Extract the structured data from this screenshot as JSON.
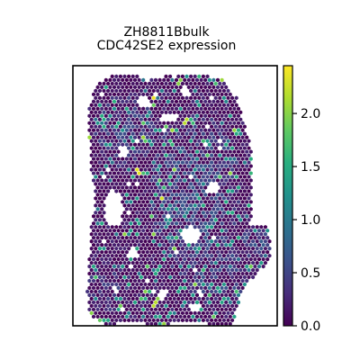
{
  "chart_data": {
    "type": "scatter",
    "title": "ZH8811Bbulk",
    "subtitle": "CDC42SE2 expression",
    "xlabel": "",
    "ylabel": "",
    "grid": false,
    "legend": "none",
    "marker": "hexagon",
    "colormap": "viridis",
    "colorbar": {
      "orientation": "vertical",
      "placement": "right",
      "range": [
        0.0,
        2.45
      ],
      "ticks": [
        0.0,
        0.5,
        1.0,
        1.5,
        2.0
      ],
      "tick_labels": [
        "0.0",
        "0.5",
        "1.0",
        "1.5",
        "2.0"
      ]
    },
    "xlim": [
      0,
      100
    ],
    "ylim": [
      0,
      100
    ],
    "tissue_outline": [
      [
        8,
        15
      ],
      [
        12,
        7
      ],
      [
        18,
        4
      ],
      [
        32,
        4
      ],
      [
        36,
        6
      ],
      [
        45,
        4
      ],
      [
        62,
        3
      ],
      [
        73,
        5
      ],
      [
        80,
        12
      ],
      [
        83,
        20
      ],
      [
        87,
        30
      ],
      [
        88,
        50
      ],
      [
        87,
        62
      ],
      [
        95,
        62
      ],
      [
        97,
        68
      ],
      [
        96,
        75
      ],
      [
        88,
        82
      ],
      [
        83,
        86
      ],
      [
        80,
        95
      ],
      [
        78,
        100
      ],
      [
        70,
        100
      ],
      [
        60,
        98
      ],
      [
        50,
        99
      ],
      [
        40,
        100
      ],
      [
        28,
        98
      ],
      [
        16,
        100
      ],
      [
        8,
        96
      ],
      [
        7,
        88
      ],
      [
        8,
        75
      ],
      [
        9,
        62
      ],
      [
        11,
        50
      ],
      [
        9,
        42
      ],
      [
        8,
        28
      ]
    ],
    "holes": [
      {
        "cx": 20,
        "cy": 55,
        "rx": 4.5,
        "ry": 7
      },
      {
        "cx": 58,
        "cy": 65,
        "rx": 5,
        "ry": 3
      },
      {
        "cx": 68,
        "cy": 47,
        "rx": 3,
        "ry": 2
      },
      {
        "cx": 47,
        "cy": 20,
        "rx": 4,
        "ry": 2
      },
      {
        "cx": 35,
        "cy": 14,
        "rx": 3,
        "ry": 2.5
      },
      {
        "cx": 25,
        "cy": 33,
        "rx": 2.5,
        "ry": 2
      },
      {
        "cx": 55,
        "cy": 10,
        "rx": 2.5,
        "ry": 2
      },
      {
        "cx": 44,
        "cy": 88,
        "rx": 2.5,
        "ry": 2
      },
      {
        "cx": 60,
        "cy": 93,
        "rx": 3,
        "ry": 2
      },
      {
        "cx": 30,
        "cy": 72,
        "rx": 2,
        "ry": 2
      }
    ],
    "regions": [
      {
        "cx": 60,
        "cy": 50,
        "rx": 22,
        "ry": 32,
        "level": 0.55
      },
      {
        "cx": 72,
        "cy": 80,
        "rx": 18,
        "ry": 12,
        "level": 0.5
      },
      {
        "cx": 90,
        "cy": 68,
        "rx": 8,
        "ry": 6,
        "level": 0.6
      },
      {
        "cx": 25,
        "cy": 25,
        "rx": 16,
        "ry": 14,
        "level": 0.45
      },
      {
        "cx": 18,
        "cy": 85,
        "rx": 12,
        "ry": 10,
        "level": 0.35
      }
    ],
    "hotspots": [
      {
        "x": 40,
        "y": 12,
        "value": 2.4
      },
      {
        "x": 55,
        "y": 21,
        "value": 2.2
      },
      {
        "x": 48,
        "y": 30,
        "value": 1.6
      },
      {
        "x": 43,
        "y": 51,
        "value": 2.3
      },
      {
        "x": 38,
        "y": 58,
        "value": 1.8
      },
      {
        "x": 52,
        "y": 6,
        "value": 2.0
      },
      {
        "x": 22,
        "y": 23,
        "value": 1.4
      },
      {
        "x": 40,
        "y": 92,
        "value": 2.2
      },
      {
        "x": 43,
        "y": 89,
        "value": 2.4
      },
      {
        "x": 28,
        "y": 84,
        "value": 1.5
      },
      {
        "x": 32,
        "y": 41,
        "value": 2.35
      },
      {
        "x": 15,
        "y": 20,
        "value": 1.5
      },
      {
        "x": 66,
        "y": 30,
        "value": 1.3
      },
      {
        "x": 80,
        "y": 25,
        "value": 1.5
      }
    ]
  }
}
